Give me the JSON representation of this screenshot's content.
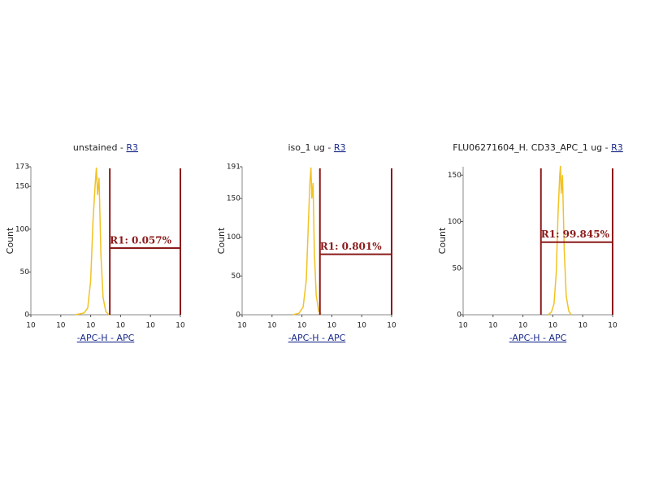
{
  "chart_data": [
    {
      "type": "histogram",
      "title": "unstained -",
      "title_link": "R3",
      "xlabel": "-APC-H - APC",
      "ylabel": "Count",
      "xscale": "log",
      "xlim": [
        1,
        100000
      ],
      "xticks": [
        {
          "value": 1,
          "label": "10"
        },
        10,
        {
          "value": 100,
          "label": "10"
        },
        {
          "value": 1000,
          "label": "10"
        },
        {
          "value": 10000,
          "label": "10"
        },
        {
          "value": 100000,
          "label": "10"
        }
      ],
      "ylim": [
        0,
        173
      ],
      "yticks": [
        0,
        50,
        100,
        150,
        173
      ],
      "color": "#f2c224",
      "x": [
        30,
        60,
        80,
        100,
        120,
        140,
        155,
        170,
        190,
        220,
        260,
        320,
        400
      ],
      "values": [
        0,
        2,
        8,
        40,
        110,
        150,
        172,
        140,
        160,
        70,
        20,
        4,
        0
      ],
      "gate": {
        "label": "R1: 0.057%",
        "color": "#8b1a1a",
        "x": [
          436,
          100000
        ],
        "y": 78
      }
    },
    {
      "type": "histogram",
      "title": "iso_1 ug -",
      "title_link": "R3",
      "xlabel": "-APC-H - APC",
      "ylabel": "Count",
      "xscale": "log",
      "xlim": [
        1,
        100000
      ],
      "xticks": [
        {
          "value": 1,
          "label": "10"
        },
        10,
        {
          "value": 100,
          "label": "10"
        },
        {
          "value": 1000,
          "label": "10"
        },
        {
          "value": 10000,
          "label": "10"
        },
        {
          "value": 100000,
          "label": "10"
        }
      ],
      "ylim": [
        0,
        191
      ],
      "yticks": [
        0,
        50,
        100,
        150,
        191
      ],
      "color": "#f2c224",
      "x": [
        50,
        80,
        110,
        140,
        165,
        185,
        200,
        215,
        235,
        260,
        300,
        360,
        450
      ],
      "values": [
        0,
        2,
        10,
        45,
        120,
        170,
        190,
        150,
        170,
        80,
        25,
        5,
        0
      ],
      "gate": {
        "label": "R1: 0.801%",
        "color": "#8b1a1a",
        "x": [
          400,
          100000
        ],
        "y": 78
      }
    },
    {
      "type": "histogram",
      "title": "FLU06271604_H. CD33_APC_1 ug -",
      "title_link": "R3",
      "xlabel": "-APC-H - APC",
      "ylabel": "Count",
      "xscale": "log",
      "xlim": [
        1,
        100000
      ],
      "xticks": [
        {
          "value": 1,
          "label": "10"
        },
        10,
        {
          "value": 100,
          "label": "10"
        },
        {
          "value": 1000,
          "label": "10"
        },
        {
          "value": 10000,
          "label": "10"
        },
        {
          "value": 100000,
          "label": "10"
        }
      ],
      "ylim": [
        0,
        159
      ],
      "yticks": [
        0,
        50,
        100,
        150
      ],
      "color": "#f2c224",
      "x": [
        700,
        900,
        1100,
        1300,
        1500,
        1700,
        1800,
        1900,
        2100,
        2400,
        2800,
        3400,
        4200
      ],
      "values": [
        0,
        3,
        12,
        45,
        110,
        150,
        160,
        130,
        150,
        70,
        20,
        4,
        0
      ],
      "gate": {
        "label": "R1: 99.845%",
        "color": "#8b1a1a",
        "x": [
          400,
          100000
        ],
        "y": 78
      }
    }
  ]
}
